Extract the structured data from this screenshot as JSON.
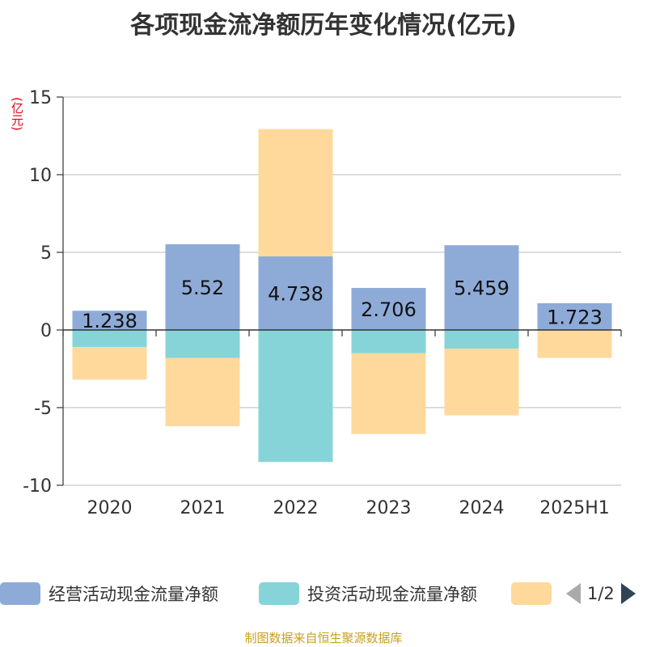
{
  "title": "各项现金流净额历年变化情况(亿元)",
  "unit": "(亿元)",
  "source": "制图数据来自恒生聚源数据库",
  "legend": {
    "items": [
      {
        "label": "经营活动现金流量净额",
        "color": "#8eabd8"
      },
      {
        "label": "投资活动现金流量净额",
        "color": "#86d4d8"
      },
      {
        "label": "",
        "color": "#fed99b"
      }
    ],
    "page": "1/2"
  },
  "chart_data": {
    "type": "bar",
    "stacked": true,
    "categories": [
      "2020",
      "2021",
      "2022",
      "2023",
      "2024",
      "2025H1"
    ],
    "ylim": [
      -10,
      15
    ],
    "yticks": [
      -10,
      -5,
      0,
      5,
      10,
      15
    ],
    "grid": true,
    "series": [
      {
        "name": "经营活动现金流量净额",
        "color": "#8eabd8",
        "values": [
          1.238,
          5.52,
          4.738,
          2.706,
          5.459,
          1.723
        ],
        "labels": [
          "1.238",
          "5.52",
          "4.738",
          "2.706",
          "5.459",
          "1.723"
        ]
      },
      {
        "name": "投资活动现金流量净额",
        "color": "#86d4d8",
        "values": [
          -1.1,
          -1.8,
          -8.5,
          -1.5,
          -1.2,
          0
        ]
      },
      {
        "color": "#fed99b",
        "values": [
          -2.1,
          -4.4,
          8.2,
          -5.2,
          -4.3,
          -1.8
        ]
      }
    ]
  }
}
